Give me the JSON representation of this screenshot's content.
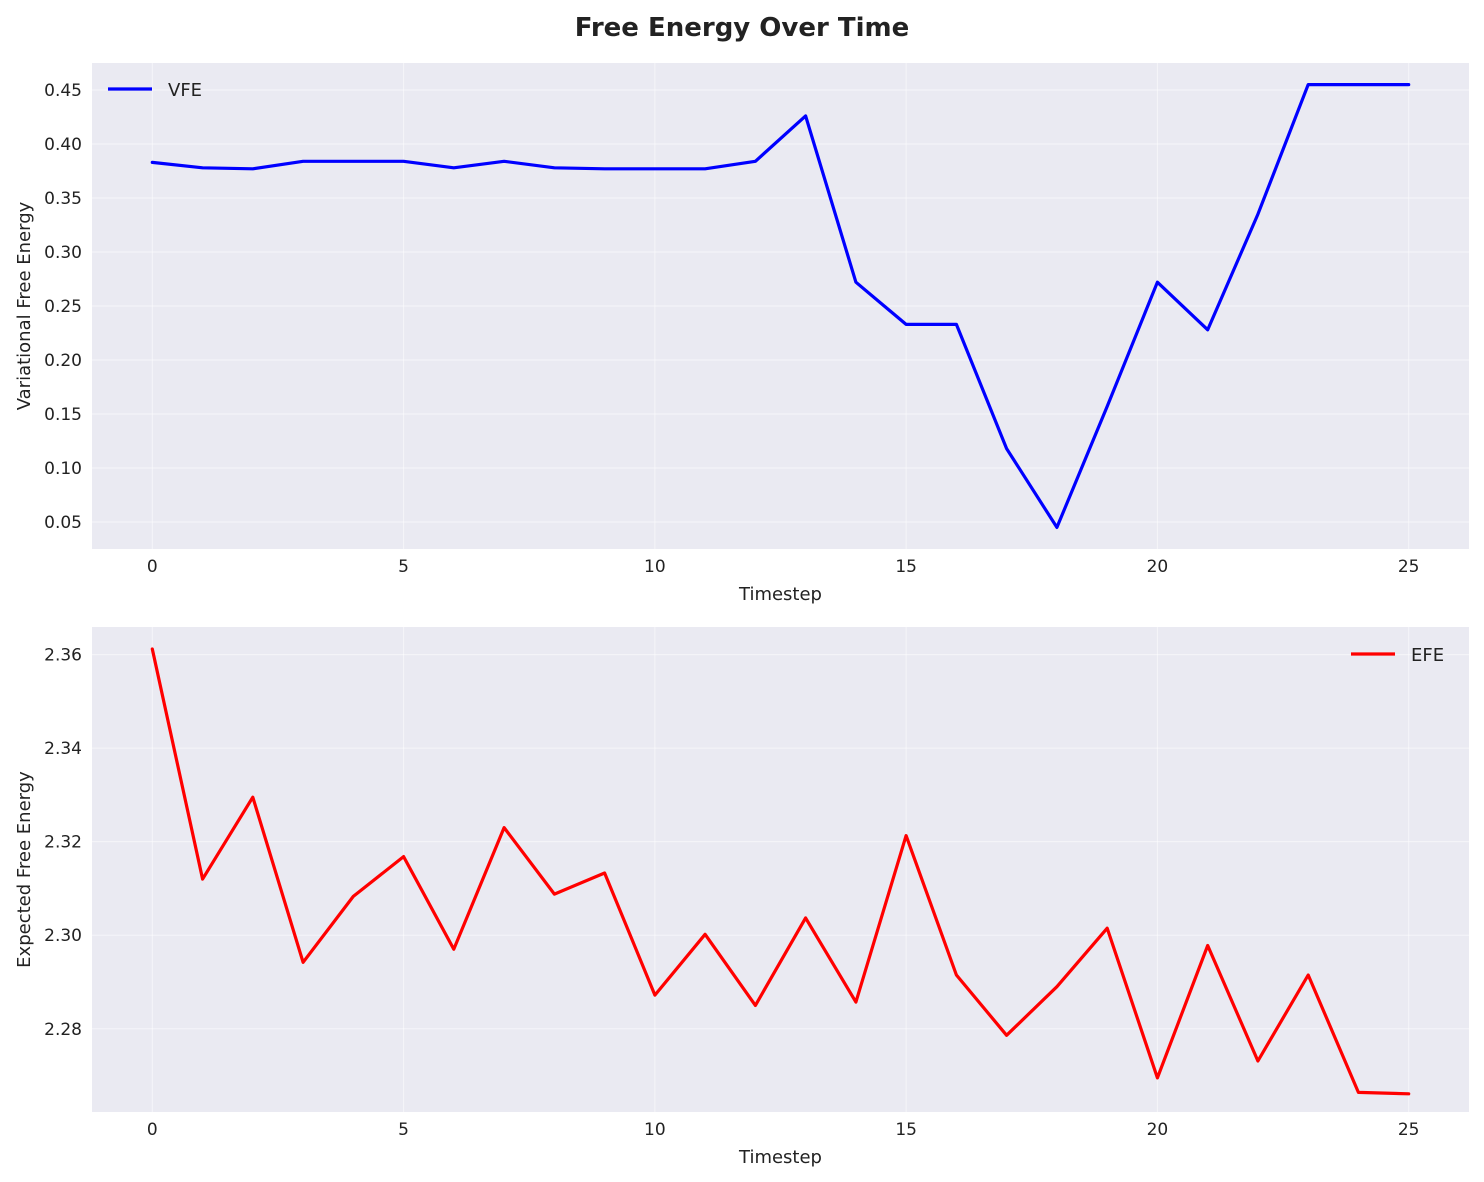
{
  "figure": {
    "title": "Free Energy Over Time"
  },
  "chart_data": [
    {
      "type": "line",
      "xlabel": "Timestep",
      "ylabel": "Variational Free Energy",
      "xlim": [
        -1.2,
        26.2
      ],
      "ylim": [
        0.025,
        0.475
      ],
      "xticks": [
        0,
        5,
        10,
        15,
        20,
        25
      ],
      "yticks": [
        0.05,
        0.1,
        0.15,
        0.2,
        0.25,
        0.3,
        0.35,
        0.4,
        0.45
      ],
      "ytick_decimals": 2,
      "grid": true,
      "legend_position": "upper-left",
      "series": [
        {
          "name": "VFE",
          "color": "#0000ff",
          "x": [
            0,
            1,
            2,
            3,
            4,
            5,
            6,
            7,
            8,
            9,
            10,
            11,
            12,
            13,
            14,
            15,
            16,
            17,
            18,
            19,
            20,
            21,
            22,
            23,
            24,
            25
          ],
          "values": [
            0.383,
            0.378,
            0.377,
            0.384,
            0.384,
            0.384,
            0.378,
            0.384,
            0.378,
            0.377,
            0.377,
            0.377,
            0.384,
            0.426,
            0.272,
            0.233,
            0.233,
            0.118,
            0.045,
            0.157,
            0.272,
            0.228,
            0.335,
            0.455,
            0.455,
            0.455
          ]
        }
      ]
    },
    {
      "type": "line",
      "xlabel": "Timestep",
      "ylabel": "Expected Free Energy",
      "xlim": [
        -1.2,
        26.2
      ],
      "ylim": [
        2.2622,
        2.3659
      ],
      "xticks": [
        0,
        5,
        10,
        15,
        20,
        25
      ],
      "yticks": [
        2.28,
        2.3,
        2.32,
        2.34,
        2.36
      ],
      "ytick_decimals": 2,
      "grid": true,
      "legend_position": "upper-right",
      "series": [
        {
          "name": "EFE",
          "color": "#ff0000",
          "x": [
            0,
            1,
            2,
            3,
            4,
            5,
            6,
            7,
            8,
            9,
            10,
            11,
            12,
            13,
            14,
            15,
            16,
            17,
            18,
            19,
            20,
            21,
            22,
            23,
            24,
            25
          ],
          "values": [
            2.3612,
            2.312,
            2.3295,
            2.2942,
            2.3083,
            2.3168,
            2.297,
            2.323,
            2.3088,
            2.3133,
            2.2872,
            2.3002,
            2.285,
            2.3037,
            2.2857,
            2.3213,
            2.2915,
            2.2786,
            2.289,
            2.3015,
            2.2695,
            2.2978,
            2.2731,
            2.2915,
            2.2664,
            2.2661
          ]
        }
      ]
    }
  ]
}
